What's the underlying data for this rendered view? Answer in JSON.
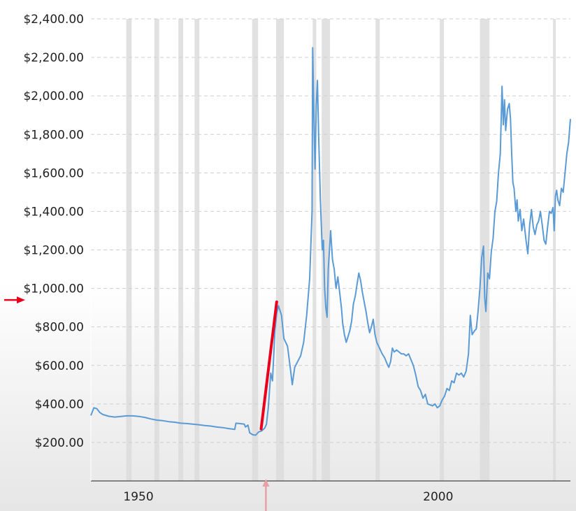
{
  "chart_data": {
    "type": "line",
    "title": "",
    "xlabel": "",
    "ylabel": "",
    "xlim": [
      1943,
      2023
    ],
    "ylim": [
      0,
      2400
    ],
    "x_ticks": [
      1950,
      2000
    ],
    "x_tick_labels": [
      "1950",
      "2000"
    ],
    "y_ticks": [
      200,
      400,
      600,
      800,
      1000,
      1200,
      1400,
      1600,
      1800,
      2000,
      2200,
      2400
    ],
    "y_tick_labels": [
      "$200.00",
      "$400.00",
      "$600.00",
      "$800.00",
      "$1,000.00",
      "$1,200.00",
      "$1,400.00",
      "$1,600.00",
      "$1,800.00",
      "$2,000.00",
      "$2,200.00",
      "$2,400.00"
    ],
    "grid": "horizontal dashed",
    "line_color": "#5b9bd5",
    "recession_color": "#dcdcdc",
    "recessions": [
      [
        1948.9,
        1949.8
      ],
      [
        1953.6,
        1954.4
      ],
      [
        1957.6,
        1958.4
      ],
      [
        1960.3,
        1961.1
      ],
      [
        1969.9,
        1970.9
      ],
      [
        1973.9,
        1975.2
      ],
      [
        1980.0,
        1980.6
      ],
      [
        1981.5,
        1982.9
      ],
      [
        1990.5,
        1991.2
      ],
      [
        2001.2,
        2001.9
      ],
      [
        2007.9,
        2009.5
      ],
      [
        2020.1,
        2020.4
      ]
    ],
    "series": [
      {
        "name": "",
        "color": "#5b9bd5",
        "points": [
          [
            1943.0,
            340
          ],
          [
            1943.5,
            380
          ],
          [
            1944.0,
            375
          ],
          [
            1944.5,
            355
          ],
          [
            1945.0,
            345
          ],
          [
            1946.0,
            336
          ],
          [
            1947.0,
            332
          ],
          [
            1948.0,
            335
          ],
          [
            1949.0,
            338
          ],
          [
            1950.0,
            338
          ],
          [
            1951.0,
            335
          ],
          [
            1952.0,
            330
          ],
          [
            1953.0,
            322
          ],
          [
            1954.0,
            316
          ],
          [
            1955.0,
            313
          ],
          [
            1956.0,
            308
          ],
          [
            1957.0,
            305
          ],
          [
            1958.0,
            300
          ],
          [
            1959.0,
            298
          ],
          [
            1960.0,
            295
          ],
          [
            1961.0,
            292
          ],
          [
            1962.0,
            288
          ],
          [
            1963.0,
            285
          ],
          [
            1964.0,
            280
          ],
          [
            1965.0,
            277
          ],
          [
            1966.0,
            272
          ],
          [
            1967.0,
            268
          ],
          [
            1967.2,
            300
          ],
          [
            1967.8,
            298
          ],
          [
            1968.6,
            295
          ],
          [
            1968.8,
            280
          ],
          [
            1969.2,
            290
          ],
          [
            1969.5,
            250
          ],
          [
            1970.0,
            240
          ],
          [
            1970.5,
            238
          ],
          [
            1971.0,
            255
          ],
          [
            1971.5,
            260
          ],
          [
            1972.0,
            275
          ],
          [
            1972.3,
            295
          ],
          [
            1972.6,
            380
          ],
          [
            1973.0,
            560
          ],
          [
            1973.3,
            520
          ],
          [
            1973.7,
            780
          ],
          [
            1974.0,
            870
          ],
          [
            1974.3,
            910
          ],
          [
            1974.8,
            860
          ],
          [
            1975.2,
            740
          ],
          [
            1975.8,
            700
          ],
          [
            1976.3,
            580
          ],
          [
            1976.6,
            500
          ],
          [
            1977.0,
            590
          ],
          [
            1977.5,
            620
          ],
          [
            1978.0,
            650
          ],
          [
            1978.5,
            720
          ],
          [
            1979.0,
            860
          ],
          [
            1979.5,
            1050
          ],
          [
            1979.9,
            1400
          ],
          [
            1980.0,
            2250
          ],
          [
            1980.2,
            1900
          ],
          [
            1980.4,
            1620
          ],
          [
            1980.6,
            1950
          ],
          [
            1980.8,
            2080
          ],
          [
            1981.0,
            1800
          ],
          [
            1981.3,
            1450
          ],
          [
            1981.6,
            1200
          ],
          [
            1981.8,
            1250
          ],
          [
            1982.0,
            1000
          ],
          [
            1982.2,
            900
          ],
          [
            1982.4,
            850
          ],
          [
            1982.6,
            1100
          ],
          [
            1982.8,
            1200
          ],
          [
            1983.0,
            1300
          ],
          [
            1983.3,
            1150
          ],
          [
            1983.6,
            1100
          ],
          [
            1983.9,
            1000
          ],
          [
            1984.2,
            1060
          ],
          [
            1984.5,
            980
          ],
          [
            1984.8,
            900
          ],
          [
            1985.0,
            820
          ],
          [
            1985.3,
            760
          ],
          [
            1985.6,
            720
          ],
          [
            1985.9,
            750
          ],
          [
            1986.2,
            780
          ],
          [
            1986.5,
            830
          ],
          [
            1986.8,
            920
          ],
          [
            1987.1,
            960
          ],
          [
            1987.4,
            1020
          ],
          [
            1987.7,
            1080
          ],
          [
            1988.0,
            1040
          ],
          [
            1988.3,
            980
          ],
          [
            1988.6,
            930
          ],
          [
            1988.9,
            880
          ],
          [
            1989.2,
            820
          ],
          [
            1989.5,
            770
          ],
          [
            1989.8,
            800
          ],
          [
            1990.1,
            840
          ],
          [
            1990.4,
            760
          ],
          [
            1990.7,
            720
          ],
          [
            1991.0,
            700
          ],
          [
            1991.3,
            680
          ],
          [
            1991.6,
            660
          ],
          [
            1992.0,
            640
          ],
          [
            1992.4,
            610
          ],
          [
            1992.7,
            590
          ],
          [
            1993.0,
            620
          ],
          [
            1993.3,
            690
          ],
          [
            1993.6,
            670
          ],
          [
            1994.0,
            680
          ],
          [
            1994.4,
            670
          ],
          [
            1994.8,
            660
          ],
          [
            1995.2,
            660
          ],
          [
            1995.6,
            650
          ],
          [
            1996.0,
            660
          ],
          [
            1996.4,
            630
          ],
          [
            1996.8,
            600
          ],
          [
            1997.2,
            550
          ],
          [
            1997.6,
            490
          ],
          [
            1998.0,
            470
          ],
          [
            1998.4,
            430
          ],
          [
            1998.8,
            450
          ],
          [
            1999.2,
            400
          ],
          [
            1999.6,
            395
          ],
          [
            2000.0,
            390
          ],
          [
            2000.4,
            400
          ],
          [
            2000.8,
            380
          ],
          [
            2001.2,
            390
          ],
          [
            2001.6,
            420
          ],
          [
            2002.0,
            440
          ],
          [
            2002.4,
            480
          ],
          [
            2002.8,
            470
          ],
          [
            2003.2,
            520
          ],
          [
            2003.6,
            510
          ],
          [
            2004.0,
            560
          ],
          [
            2004.4,
            550
          ],
          [
            2004.8,
            560
          ],
          [
            2005.2,
            540
          ],
          [
            2005.6,
            570
          ],
          [
            2006.0,
            660
          ],
          [
            2006.3,
            860
          ],
          [
            2006.6,
            760
          ],
          [
            2007.0,
            780
          ],
          [
            2007.3,
            790
          ],
          [
            2007.6,
            880
          ],
          [
            2007.9,
            1000
          ],
          [
            2008.2,
            1160
          ],
          [
            2008.5,
            1220
          ],
          [
            2008.7,
            950
          ],
          [
            2008.9,
            880
          ],
          [
            2009.2,
            1080
          ],
          [
            2009.5,
            1050
          ],
          [
            2009.8,
            1190
          ],
          [
            2010.1,
            1260
          ],
          [
            2010.4,
            1400
          ],
          [
            2010.7,
            1450
          ],
          [
            2011.0,
            1600
          ],
          [
            2011.3,
            1700
          ],
          [
            2011.6,
            2050
          ],
          [
            2011.8,
            1850
          ],
          [
            2012.0,
            1980
          ],
          [
            2012.2,
            1820
          ],
          [
            2012.5,
            1930
          ],
          [
            2012.8,
            1960
          ],
          [
            2013.0,
            1880
          ],
          [
            2013.2,
            1700
          ],
          [
            2013.4,
            1550
          ],
          [
            2013.6,
            1520
          ],
          [
            2013.9,
            1400
          ],
          [
            2014.1,
            1460
          ],
          [
            2014.3,
            1350
          ],
          [
            2014.6,
            1410
          ],
          [
            2014.9,
            1300
          ],
          [
            2015.2,
            1360
          ],
          [
            2015.6,
            1250
          ],
          [
            2015.9,
            1180
          ],
          [
            2016.2,
            1330
          ],
          [
            2016.5,
            1410
          ],
          [
            2016.8,
            1320
          ],
          [
            2017.1,
            1280
          ],
          [
            2017.4,
            1330
          ],
          [
            2017.7,
            1350
          ],
          [
            2018.0,
            1400
          ],
          [
            2018.3,
            1330
          ],
          [
            2018.6,
            1250
          ],
          [
            2018.9,
            1230
          ],
          [
            2019.2,
            1320
          ],
          [
            2019.5,
            1400
          ],
          [
            2019.8,
            1390
          ],
          [
            2020.1,
            1420
          ],
          [
            2020.3,
            1300
          ],
          [
            2020.5,
            1480
          ],
          [
            2020.7,
            1510
          ],
          [
            2020.9,
            1460
          ],
          [
            2021.2,
            1430
          ],
          [
            2021.5,
            1520
          ],
          [
            2021.8,
            1500
          ],
          [
            2022.1,
            1600
          ],
          [
            2022.4,
            1700
          ],
          [
            2022.7,
            1760
          ],
          [
            2023.0,
            1880
          ]
        ]
      }
    ],
    "annotations": [
      {
        "type": "line",
        "color": "#e8001c",
        "points": [
          [
            1971.4,
            270
          ],
          [
            1974.0,
            930
          ]
        ]
      },
      {
        "type": "arrow",
        "color": "#e8001c",
        "direction": "right",
        "y": 940
      },
      {
        "type": "arrow",
        "color": "#e8a0a6",
        "direction": "up",
        "x": 1972.2
      }
    ]
  }
}
